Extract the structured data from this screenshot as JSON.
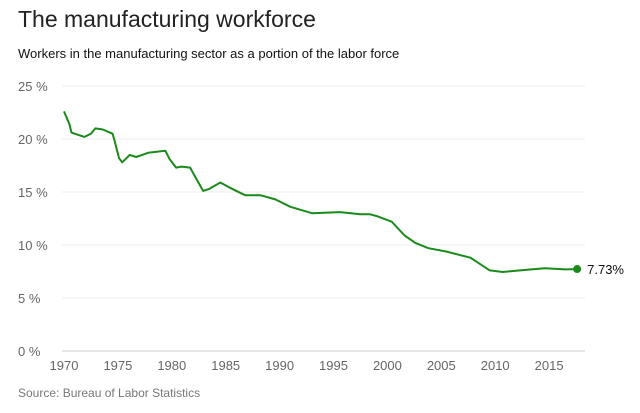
{
  "chart_data": {
    "type": "line",
    "title": "The manufacturing workforce",
    "subtitle": "Workers in the manufacturing sector as a portion of the labor force",
    "source": "Source: Bureau of Labor Statistics",
    "xlim": [
      1970,
      2018
    ],
    "ylim": [
      0,
      25
    ],
    "x_ticks": [
      "1970",
      "1975",
      "1980",
      "1985",
      "1990",
      "1995",
      "2000",
      "2005",
      "2010",
      "2015"
    ],
    "y_ticks": [
      "0 %",
      "5 %",
      "10 %",
      "15 %",
      "20 %",
      "25 %"
    ],
    "grid": true,
    "color": "#1a8a1a",
    "end_label": "7.73%",
    "series": [
      {
        "x": [
          1970.0,
          1970.5,
          1970.7,
          1971.3,
          1971.9,
          1972.5,
          1972.9,
          1973.6,
          1974.5,
          1974.7,
          1975.1,
          1975.4,
          1976.1,
          1976.7,
          1977.8,
          1979.4,
          1979.8,
          1980.4,
          1980.9,
          1981.7,
          1982.9,
          1983.5,
          1984.5,
          1985.4,
          1986.8,
          1988.2,
          1989.6,
          1991.0,
          1993.0,
          1995.6,
          1997.5,
          1998.4,
          1999.1,
          2000.4,
          2001.6,
          2002.6,
          2003.8,
          2005.4,
          2007.7,
          2009.5,
          2010.7,
          2012.3,
          2014.6,
          2016.5,
          2017.6
        ],
        "y": [
          22.6,
          21.4,
          20.6,
          20.4,
          20.2,
          20.5,
          21.0,
          20.9,
          20.5,
          19.8,
          18.2,
          17.8,
          18.5,
          18.3,
          18.7,
          18.9,
          18.1,
          17.3,
          17.4,
          17.3,
          15.1,
          15.3,
          15.9,
          15.4,
          14.7,
          14.7,
          14.3,
          13.6,
          13.0,
          13.1,
          12.9,
          12.9,
          12.7,
          12.2,
          10.9,
          10.2,
          9.7,
          9.4,
          8.8,
          7.6,
          7.45,
          7.6,
          7.8,
          7.7,
          7.73
        ]
      }
    ]
  }
}
